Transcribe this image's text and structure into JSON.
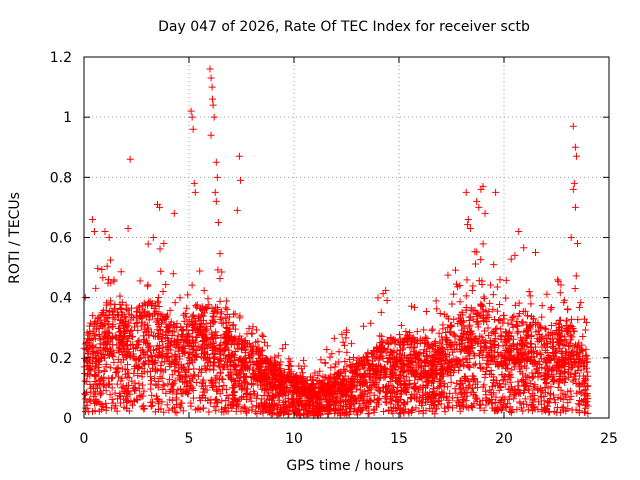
{
  "chart_data": {
    "type": "scatter",
    "title": "Day 047 of 2026, Rate Of TEC Index for receiver sctb",
    "xlabel": "GPS time / hours",
    "ylabel": "ROTI / TECUs",
    "xlim": [
      0,
      25
    ],
    "ylim": [
      0,
      1.2
    ],
    "xticks": [
      0,
      5,
      10,
      15,
      20,
      25
    ],
    "yticks": [
      0,
      0.2,
      0.4,
      0.6,
      0.8,
      1,
      1.2
    ],
    "xtick_labels": [
      "0",
      "5",
      "10",
      "15",
      "20",
      "25"
    ],
    "ytick_labels": [
      "0",
      "0.2",
      "0.4",
      "0.6",
      "0.8",
      "1",
      "1.2"
    ],
    "grid": true,
    "marker": "+",
    "color": "#ff0000",
    "series": [
      {
        "name": "ROTI",
        "profile_hours": [
          0,
          0.5,
          1,
          1.5,
          2,
          2.5,
          3,
          3.5,
          4,
          4.5,
          5,
          5.5,
          6,
          6.5,
          7,
          7.5,
          8,
          8.5,
          9,
          9.5,
          10,
          10.5,
          11,
          11.5,
          12,
          12.5,
          13,
          13.5,
          14,
          14.5,
          15,
          15.5,
          16,
          16.5,
          17,
          17.5,
          18,
          18.5,
          19,
          19.5,
          20,
          20.5,
          21,
          21.5,
          22,
          22.5,
          23,
          23.5,
          24
        ],
        "profile_median": [
          0.13,
          0.17,
          0.2,
          0.22,
          0.2,
          0.19,
          0.21,
          0.2,
          0.18,
          0.17,
          0.18,
          0.2,
          0.2,
          0.19,
          0.16,
          0.14,
          0.13,
          0.12,
          0.1,
          0.09,
          0.08,
          0.07,
          0.06,
          0.07,
          0.08,
          0.09,
          0.1,
          0.12,
          0.13,
          0.14,
          0.14,
          0.15,
          0.14,
          0.13,
          0.14,
          0.17,
          0.19,
          0.2,
          0.2,
          0.18,
          0.17,
          0.18,
          0.19,
          0.17,
          0.16,
          0.17,
          0.18,
          0.14,
          0.1
        ],
        "profile_upper": [
          0.38,
          0.5,
          0.6,
          0.55,
          0.45,
          0.48,
          0.55,
          0.6,
          0.5,
          0.45,
          0.5,
          0.52,
          0.62,
          0.55,
          0.48,
          0.38,
          0.35,
          0.3,
          0.25,
          0.24,
          0.26,
          0.22,
          0.2,
          0.25,
          0.3,
          0.32,
          0.35,
          0.38,
          0.42,
          0.4,
          0.45,
          0.46,
          0.42,
          0.44,
          0.48,
          0.55,
          0.62,
          0.65,
          0.65,
          0.55,
          0.5,
          0.55,
          0.58,
          0.5,
          0.48,
          0.5,
          0.58,
          0.45,
          0.3
        ],
        "outliers": [
          [
            0.4,
            0.66
          ],
          [
            0.5,
            0.62
          ],
          [
            1.0,
            0.62
          ],
          [
            1.2,
            0.6
          ],
          [
            2.2,
            0.86
          ],
          [
            2.1,
            0.63
          ],
          [
            3.5,
            0.71
          ],
          [
            3.6,
            0.7
          ],
          [
            4.3,
            0.68
          ],
          [
            3.3,
            0.6
          ],
          [
            3.8,
            0.58
          ],
          [
            5.1,
            1.02
          ],
          [
            5.15,
            1.0
          ],
          [
            5.2,
            0.96
          ],
          [
            5.25,
            0.78
          ],
          [
            5.3,
            0.75
          ],
          [
            6.0,
            1.16
          ],
          [
            6.05,
            1.13
          ],
          [
            6.1,
            1.1
          ],
          [
            6.12,
            1.06
          ],
          [
            6.15,
            1.04
          ],
          [
            6.2,
            1.0
          ],
          [
            6.05,
            0.94
          ],
          [
            6.3,
            0.85
          ],
          [
            6.35,
            0.8
          ],
          [
            6.25,
            0.75
          ],
          [
            6.3,
            0.72
          ],
          [
            6.4,
            0.65
          ],
          [
            7.4,
            0.87
          ],
          [
            7.45,
            0.79
          ],
          [
            7.3,
            0.69
          ],
          [
            18.2,
            0.75
          ],
          [
            18.7,
            0.72
          ],
          [
            18.9,
            0.76
          ],
          [
            19.0,
            0.77
          ],
          [
            18.8,
            0.7
          ],
          [
            19.1,
            0.68
          ],
          [
            19.6,
            0.75
          ],
          [
            20.7,
            0.62
          ],
          [
            21.5,
            0.55
          ],
          [
            18.3,
            0.66
          ],
          [
            18.4,
            0.63
          ],
          [
            23.3,
            0.97
          ],
          [
            23.4,
            0.9
          ],
          [
            23.45,
            0.87
          ],
          [
            23.35,
            0.78
          ],
          [
            23.3,
            0.76
          ],
          [
            23.4,
            0.7
          ],
          [
            23.2,
            0.6
          ],
          [
            23.5,
            0.58
          ]
        ]
      }
    ]
  }
}
